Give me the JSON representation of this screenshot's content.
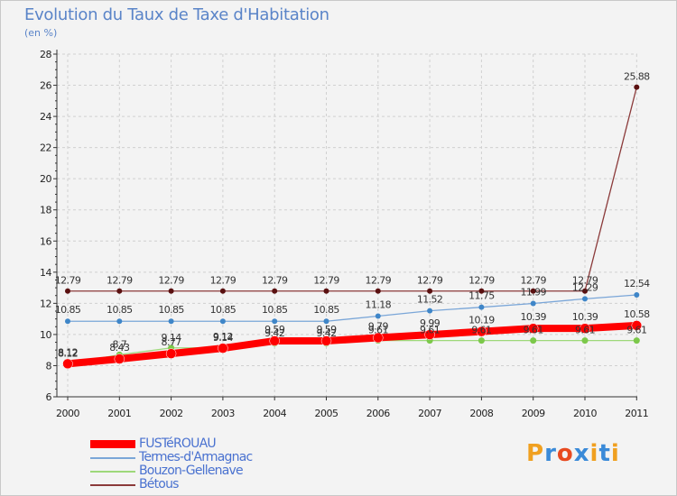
{
  "chart_data": {
    "type": "line",
    "title": "Evolution du Taux de Taxe d'Habitation",
    "unit_label": "(en %)",
    "ylim": [
      6,
      28
    ],
    "yticks": [
      6,
      8,
      10,
      12,
      14,
      16,
      18,
      20,
      22,
      24,
      26,
      28
    ],
    "categories": [
      "2000",
      "2001",
      "2002",
      "2003",
      "2004",
      "2005",
      "2006",
      "2007",
      "2008",
      "2009",
      "2010",
      "2011"
    ],
    "series": [
      {
        "name": "Bétous",
        "color": "#8b3a3a",
        "marker": "#5a1010",
        "values": [
          12.79,
          12.79,
          12.79,
          12.79,
          12.79,
          12.79,
          12.79,
          12.79,
          12.79,
          12.79,
          12.79,
          25.88
        ],
        "labels": [
          "12.79",
          "12.79",
          "12.79",
          "12.79",
          "12.79",
          "12.79",
          "12.79",
          "12.79",
          "12.79",
          "12.79",
          "12.79",
          "25.88"
        ]
      },
      {
        "name": "Termes-d'Armagnac",
        "color": "#7aa6d8",
        "marker": "#3f86c8",
        "values": [
          10.85,
          10.85,
          10.85,
          10.85,
          10.85,
          10.85,
          11.18,
          11.52,
          11.75,
          11.99,
          12.29,
          12.54
        ],
        "labels": [
          "10.85",
          "10.85",
          "10.85",
          "10.85",
          "10.85",
          "10.85",
          "11.18",
          "11.52",
          "11.75",
          "11.99",
          "12.29",
          "12.54"
        ]
      },
      {
        "name": "Bouzon-Gellenave",
        "color": "#9ed87a",
        "marker": "#7cc84a",
        "values": [
          8.12,
          8.7,
          9.14,
          9.14,
          9.42,
          9.42,
          9.61,
          9.61,
          9.61,
          9.61,
          9.61,
          9.61
        ],
        "labels": [
          "8.12",
          "8.7",
          "9.14",
          "9.14",
          "9.42",
          "9.42",
          "9.61",
          "9.61",
          "9.61",
          "9.61",
          "9.61",
          "9.61"
        ]
      },
      {
        "name": "FUSTéROUAU",
        "color": "#ff0000",
        "marker": "#ff0000",
        "values": [
          8.12,
          8.43,
          8.77,
          9.12,
          9.59,
          9.59,
          9.79,
          9.99,
          10.19,
          10.39,
          10.39,
          10.58
        ],
        "labels": [
          "8.12",
          "8.43",
          "8.77",
          "9.12",
          "9.59",
          "9.59",
          "9.79",
          "9.99",
          "10.19",
          "10.39",
          "10.39",
          "10.58"
        ]
      }
    ],
    "legend": [
      "FUSTéROUAU",
      "Termes-d'Armagnac",
      "Bouzon-Gellenave",
      "Bétous"
    ]
  },
  "branding": {
    "logo_text": "Proxiti",
    "letter_colors": [
      "#f0a020",
      "#3a8ad8",
      "#e84a20",
      "#3a8ad8",
      "#f0a020",
      "#3a8ad8",
      "#f0a020"
    ]
  }
}
